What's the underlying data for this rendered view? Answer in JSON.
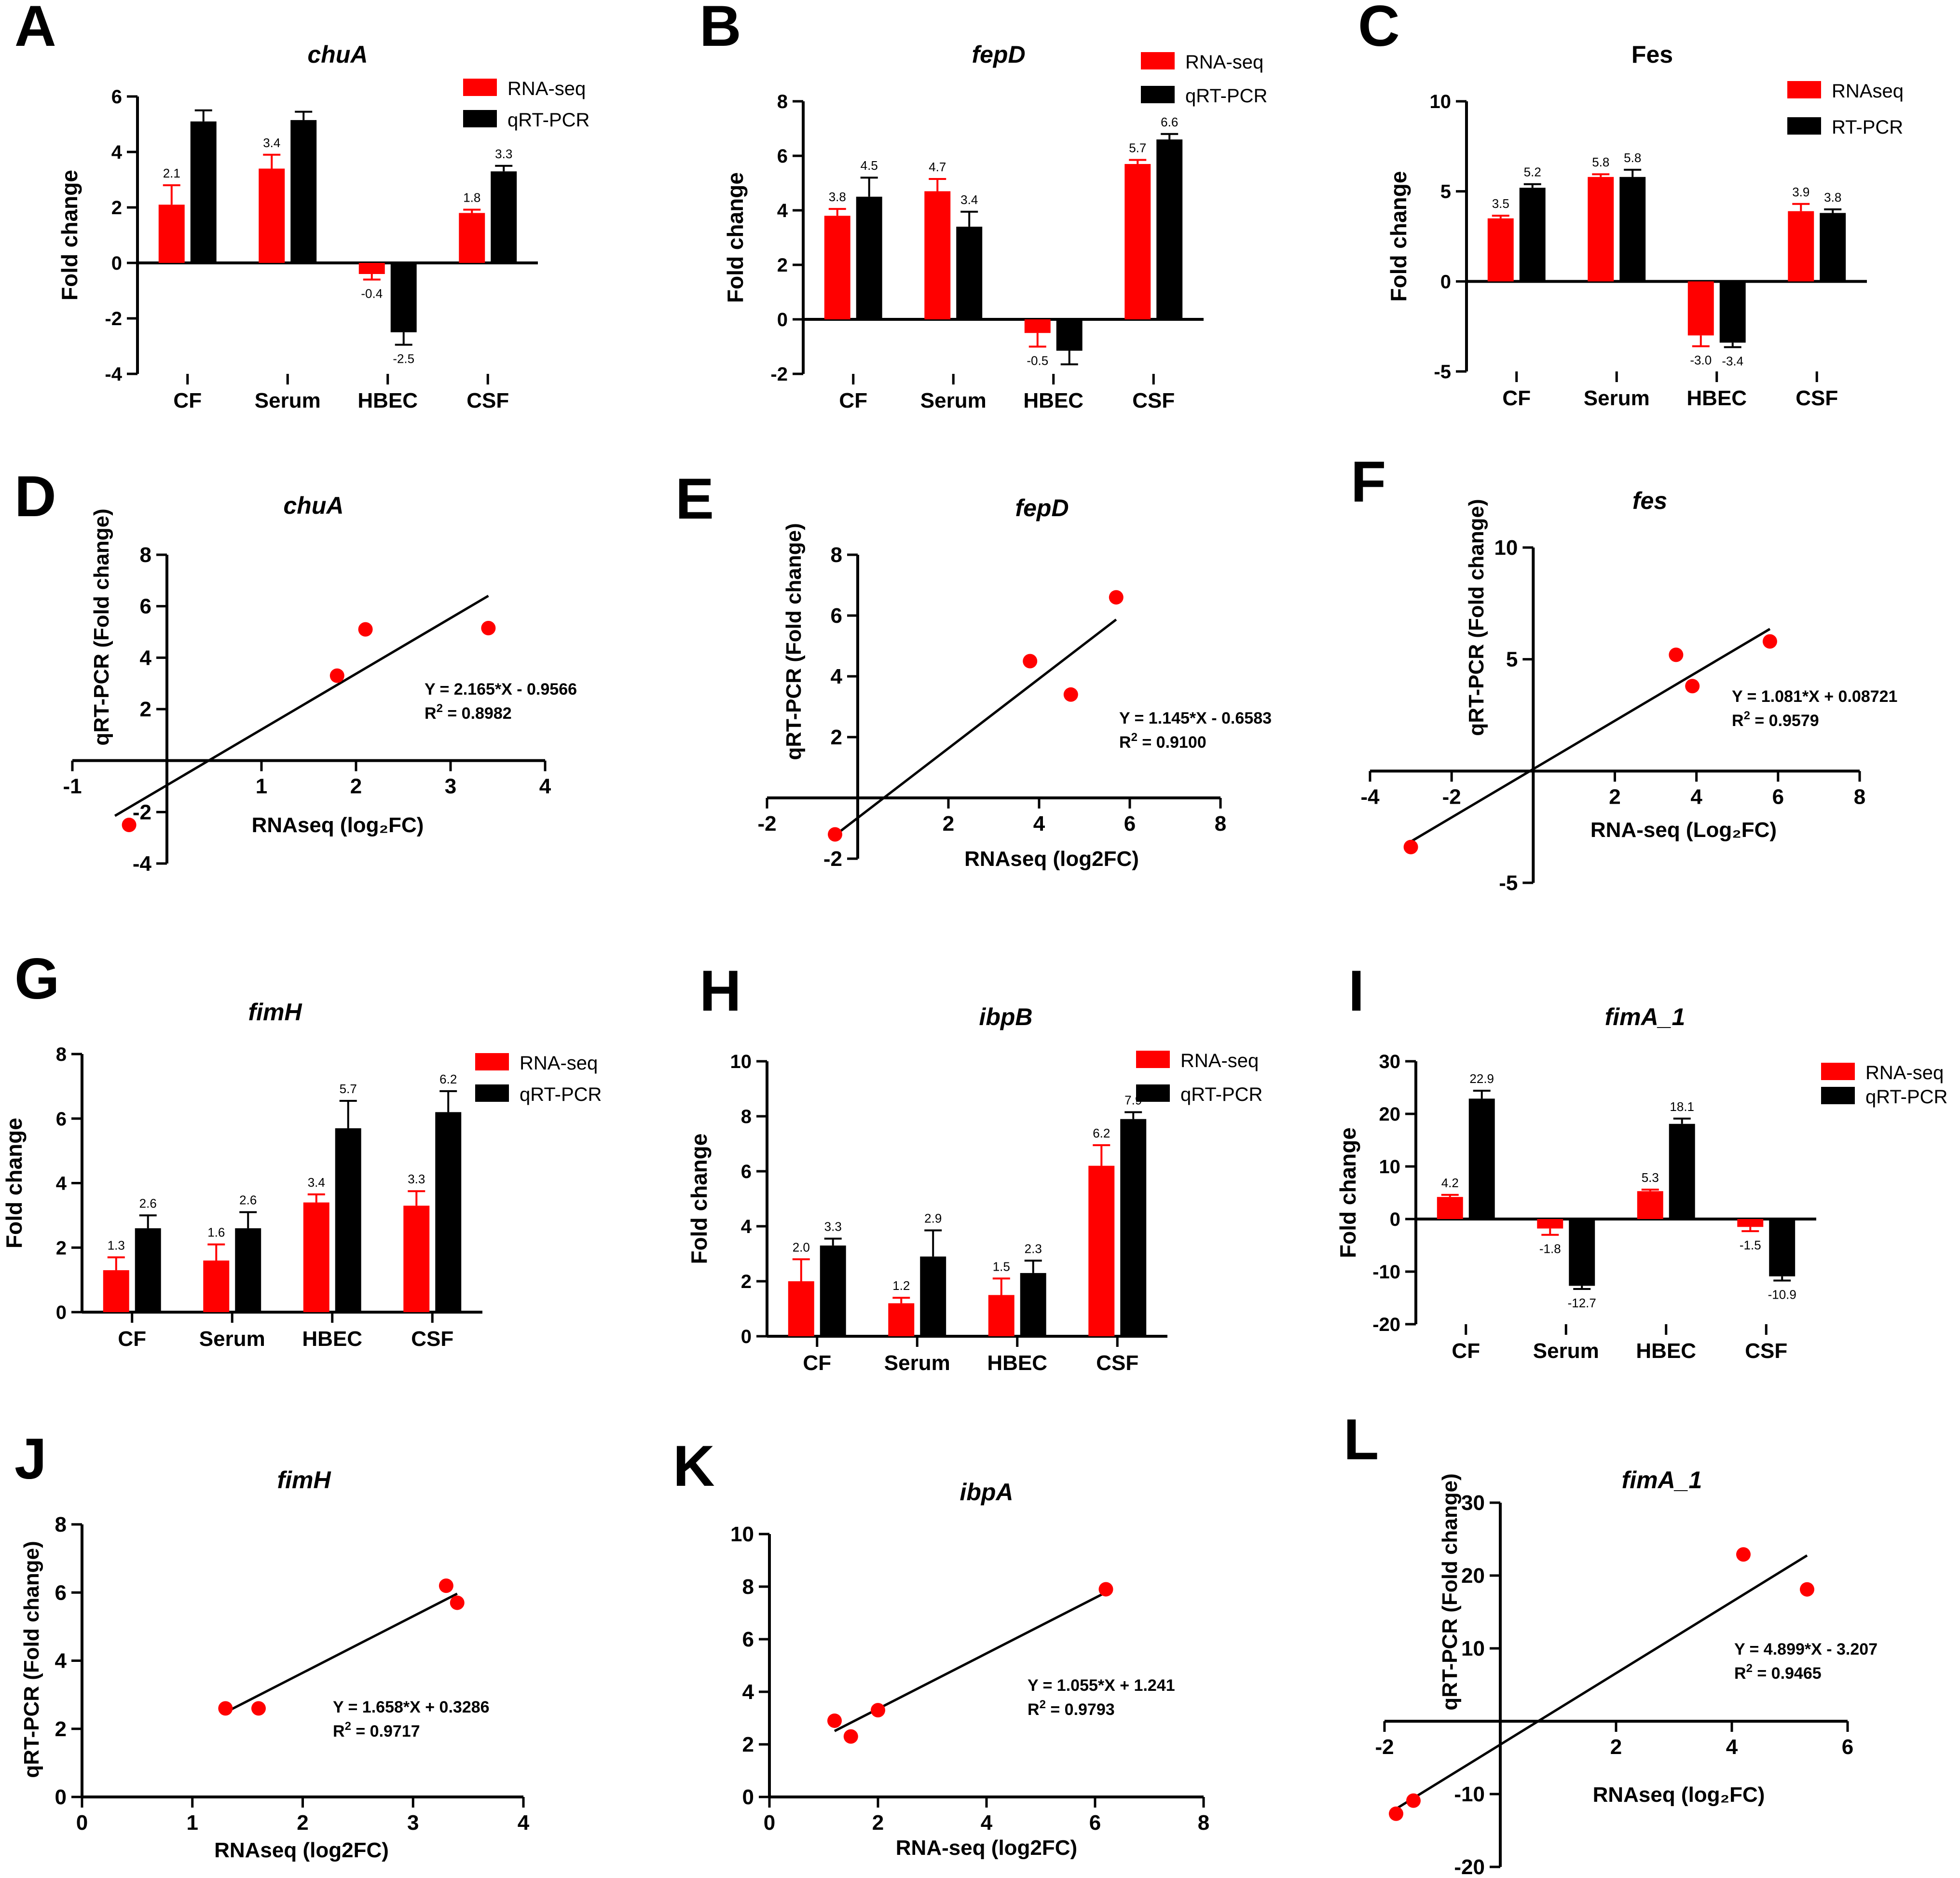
{
  "figure": {
    "panels_order": [
      "A",
      "B",
      "C",
      "D",
      "E",
      "F",
      "G",
      "H",
      "I",
      "J",
      "K",
      "L"
    ]
  },
  "chart_data": [
    {
      "panel": "A",
      "type": "bar",
      "title": "chuA",
      "title_style": "italic",
      "xlabel": "",
      "ylabel": "Fold change",
      "categories": [
        "CF",
        "Serum",
        "HBEC",
        "CSF"
      ],
      "ylim": [
        -4,
        6
      ],
      "yticks": [
        -4,
        -2,
        0,
        2,
        4,
        6
      ],
      "legend_position": "top-right",
      "series": [
        {
          "name": "RNA-seq",
          "color": "#ff0000",
          "values": [
            2.1,
            3.4,
            -0.4,
            1.8
          ],
          "errors": [
            0.7,
            0.5,
            0.2,
            0.12
          ],
          "labels": [
            "2.1",
            "3.4",
            "-0.4",
            "1.8"
          ]
        },
        {
          "name": "qRT-PCR",
          "color": "#000000",
          "values": [
            5.1,
            5.15,
            -2.5,
            3.3
          ],
          "errors": [
            0.4,
            0.3,
            0.45,
            0.2
          ],
          "labels": [
            "",
            "",
            "-2.5",
            "3.3"
          ]
        }
      ]
    },
    {
      "panel": "B",
      "type": "bar",
      "title": "fepD",
      "title_style": "italic",
      "xlabel": "",
      "ylabel": "Fold change",
      "categories": [
        "CF",
        "Serum",
        "HBEC",
        "CSF"
      ],
      "ylim": [
        -2,
        8
      ],
      "yticks": [
        -2,
        0,
        2,
        4,
        6,
        8
      ],
      "legend_position": "top-right",
      "series": [
        {
          "name": "RNA-seq",
          "color": "#ff0000",
          "values": [
            3.8,
            4.7,
            -0.5,
            5.7
          ],
          "errors": [
            0.25,
            0.45,
            0.5,
            0.15
          ],
          "labels": [
            "3.8",
            "4.7",
            "-0.5",
            "5.7"
          ]
        },
        {
          "name": "qRT-PCR",
          "color": "#000000",
          "values": [
            4.5,
            3.4,
            -1.15,
            6.6
          ],
          "errors": [
            0.7,
            0.55,
            0.5,
            0.2
          ],
          "labels": [
            "4.5",
            "3.4",
            "",
            "6.6"
          ]
        }
      ]
    },
    {
      "panel": "C",
      "type": "bar",
      "title": "Fes",
      "title_style": "normal",
      "xlabel": "",
      "ylabel": "Fold change",
      "categories": [
        "CF",
        "Serum",
        "HBEC",
        "CSF"
      ],
      "ylim": [
        -5,
        10
      ],
      "yticks": [
        -5,
        0,
        5,
        10
      ],
      "legend_position": "top-right",
      "series": [
        {
          "name": "RNAseq",
          "color": "#ff0000",
          "values": [
            3.5,
            5.8,
            -3.0,
            3.9
          ],
          "errors": [
            0.15,
            0.15,
            0.6,
            0.4
          ],
          "labels": [
            "3.5",
            "5.8",
            "-3.0",
            "3.9"
          ]
        },
        {
          "name": "RT-PCR",
          "color": "#000000",
          "values": [
            5.2,
            5.8,
            -3.4,
            3.8
          ],
          "errors": [
            0.2,
            0.4,
            0.25,
            0.2
          ],
          "labels": [
            "5.2",
            "5.8",
            "-3.4",
            "3.8"
          ]
        }
      ]
    },
    {
      "panel": "D",
      "type": "scatter",
      "title": "chuA",
      "title_style": "italic",
      "xlabel": "RNAseq (log₂FC)",
      "ylabel": "qRT-PCR (Fold change)",
      "xlim": [
        -1,
        4
      ],
      "ylim": [
        -4,
        8
      ],
      "xticks": [
        -1,
        1,
        2,
        3,
        4
      ],
      "yticks": [
        -4,
        -2,
        2,
        4,
        6,
        8
      ],
      "x": [
        2.1,
        3.4,
        -0.4,
        1.8
      ],
      "y": [
        5.1,
        5.15,
        -2.5,
        3.3
      ],
      "fit": {
        "slope": 2.165,
        "intercept": -0.9566,
        "x_range": [
          -0.55,
          3.4
        ]
      },
      "equation": "Y = 2.165*X - 0.9566",
      "r2_text": "= 0.8982"
    },
    {
      "panel": "E",
      "type": "scatter",
      "title": "fepD",
      "title_style": "italic",
      "xlabel": "RNAseq (log2FC)",
      "ylabel": "qRT-PCR (Fold change)",
      "xlim": [
        -2,
        8
      ],
      "ylim": [
        -2,
        8
      ],
      "xticks": [
        -2,
        2,
        4,
        6,
        8
      ],
      "yticks": [
        -2,
        2,
        4,
        6,
        8
      ],
      "x": [
        3.8,
        4.7,
        -0.5,
        5.7
      ],
      "y": [
        4.5,
        3.4,
        -1.2,
        6.6
      ],
      "fit": {
        "slope": 1.145,
        "intercept": -0.6583,
        "x_range": [
          -0.5,
          5.7
        ]
      },
      "equation": "Y = 1.145*X - 0.6583",
      "r2_text": "= 0.9100"
    },
    {
      "panel": "F",
      "type": "scatter",
      "title": "fes",
      "title_style": "italic",
      "xlabel": "RNA-seq (Log₂FC)",
      "ylabel": "qRT-PCR (Fold change)",
      "xlim": [
        -4,
        8
      ],
      "ylim": [
        -5,
        10
      ],
      "xticks": [
        -4,
        -2,
        2,
        4,
        6,
        8
      ],
      "yticks": [
        -5,
        5,
        10
      ],
      "x": [
        3.5,
        5.8,
        -3.0,
        3.9
      ],
      "y": [
        5.2,
        5.8,
        -3.4,
        3.8
      ],
      "fit": {
        "slope": 1.081,
        "intercept": 0.08721,
        "x_range": [
          -3.0,
          5.8
        ]
      },
      "equation": "Y = 1.081*X + 0.08721",
      "r2_text": "= 0.9579"
    },
    {
      "panel": "G",
      "type": "bar",
      "title": "fimH",
      "title_style": "italic",
      "xlabel": "",
      "ylabel": "Fold change",
      "categories": [
        "CF",
        "Serum",
        "HBEC",
        "CSF"
      ],
      "ylim": [
        0,
        8
      ],
      "yticks": [
        0,
        2,
        4,
        6,
        8
      ],
      "legend_position": "top-right",
      "series": [
        {
          "name": "RNA-seq",
          "color": "#ff0000",
          "values": [
            1.3,
            1.6,
            3.4,
            3.3
          ],
          "errors": [
            0.4,
            0.5,
            0.25,
            0.45
          ],
          "labels": [
            "1.3",
            "1.6",
            "3.4",
            "3.3"
          ]
        },
        {
          "name": "qRT-PCR",
          "color": "#000000",
          "values": [
            2.6,
            2.6,
            5.7,
            6.2
          ],
          "errors": [
            0.4,
            0.5,
            0.85,
            0.65
          ],
          "labels": [
            "2.6",
            "2.6",
            "5.7",
            "6.2"
          ]
        }
      ]
    },
    {
      "panel": "H",
      "type": "bar",
      "title": "ibpB",
      "title_style": "italic",
      "xlabel": "",
      "ylabel": "Fold change",
      "categories": [
        "CF",
        "Serum",
        "HBEC",
        "CSF"
      ],
      "ylim": [
        0,
        10
      ],
      "yticks": [
        0,
        2,
        4,
        6,
        8,
        10
      ],
      "legend_position": "top-right",
      "series": [
        {
          "name": "RNA-seq",
          "color": "#ff0000",
          "values": [
            2.0,
            1.2,
            1.5,
            6.2
          ],
          "errors": [
            0.8,
            0.2,
            0.6,
            0.75
          ],
          "labels": [
            "2.0",
            "1.2",
            "1.5",
            "6.2"
          ]
        },
        {
          "name": "qRT-PCR",
          "color": "#000000",
          "values": [
            3.3,
            2.9,
            2.3,
            7.9
          ],
          "errors": [
            0.25,
            0.95,
            0.45,
            0.25
          ],
          "labels": [
            "3.3",
            "2.9",
            "2.3",
            "7.9"
          ]
        }
      ]
    },
    {
      "panel": "I",
      "type": "bar",
      "title": "fimA_1",
      "title_style": "italic",
      "xlabel": "",
      "ylabel": "Fold change",
      "categories": [
        "CF",
        "Serum",
        "HBEC",
        "CSF"
      ],
      "ylim": [
        -20,
        30
      ],
      "yticks": [
        -20,
        -10,
        0,
        10,
        20,
        30
      ],
      "legend_position": "top-right",
      "series": [
        {
          "name": "RNA-seq",
          "color": "#ff0000",
          "values": [
            4.2,
            -1.8,
            5.3,
            -1.5
          ],
          "errors": [
            0.4,
            1.2,
            0.3,
            0.8
          ],
          "labels": [
            "4.2",
            "-1.8",
            "5.3",
            "-1.5"
          ]
        },
        {
          "name": "qRT-PCR",
          "color": "#000000",
          "values": [
            22.9,
            -12.7,
            18.1,
            -10.9
          ],
          "errors": [
            1.5,
            0.6,
            1.0,
            0.8
          ],
          "labels": [
            "22.9",
            "-12.7",
            "18.1",
            "-10.9"
          ]
        }
      ]
    },
    {
      "panel": "J",
      "type": "scatter",
      "title": "fimH",
      "title_style": "italic",
      "xlabel": "RNAseq (log2FC)",
      "ylabel": "qRT-PCR (Fold change)",
      "xlim": [
        0,
        4
      ],
      "ylim": [
        0,
        8
      ],
      "xticks": [
        0,
        1,
        2,
        3,
        4
      ],
      "yticks": [
        0,
        2,
        4,
        6,
        8
      ],
      "x": [
        1.3,
        1.6,
        3.3,
        3.4
      ],
      "y": [
        2.6,
        2.6,
        6.2,
        5.7
      ],
      "fit": {
        "slope": 1.658,
        "intercept": 0.3286,
        "x_range": [
          1.3,
          3.4
        ]
      },
      "equation": "Y = 1.658*X + 0.3286",
      "r2_text": "= 0.9717"
    },
    {
      "panel": "K",
      "type": "scatter",
      "title": "ibpA",
      "title_style": "italic",
      "xlabel": "RNA-seq (log2FC)",
      "ylabel": "",
      "xlim": [
        0,
        8
      ],
      "ylim": [
        0,
        10
      ],
      "xticks": [
        0,
        2,
        4,
        6,
        8
      ],
      "yticks": [
        0,
        2,
        4,
        6,
        8,
        10
      ],
      "x": [
        1.2,
        1.5,
        2.0,
        6.2
      ],
      "y": [
        2.9,
        2.3,
        3.3,
        7.9
      ],
      "fit": {
        "slope": 1.055,
        "intercept": 1.241,
        "x_range": [
          1.2,
          6.2
        ]
      },
      "equation": "Y = 1.055*X + 1.241",
      "r2_text": "= 0.9793"
    },
    {
      "panel": "L",
      "type": "scatter",
      "title": "fimA_1",
      "title_style": "italic",
      "xlabel": "RNAseq (log₂FC)",
      "ylabel": "qRT-PCR (Fold change)",
      "xlim": [
        -2,
        6
      ],
      "ylim": [
        -20,
        30
      ],
      "xticks": [
        -2,
        2,
        4,
        6
      ],
      "yticks": [
        -20,
        -10,
        10,
        20,
        30
      ],
      "x": [
        4.2,
        -1.8,
        5.3,
        -1.5
      ],
      "y": [
        22.9,
        -12.7,
        18.1,
        -10.9
      ],
      "fit": {
        "slope": 4.899,
        "intercept": -3.207,
        "x_range": [
          -1.8,
          5.3
        ]
      },
      "equation": "Y = 4.899*X - 3.207",
      "r2_text": "= 0.9465"
    }
  ]
}
